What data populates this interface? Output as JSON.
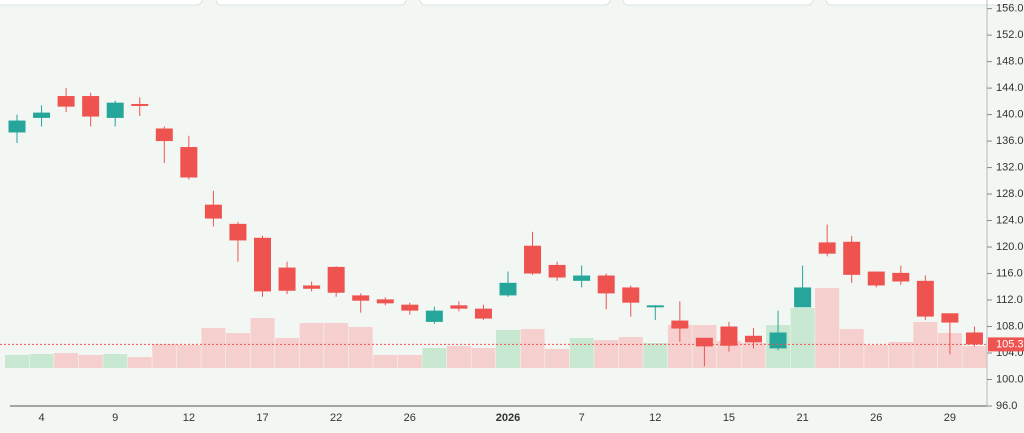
{
  "chart_data": {
    "type": "candlestick",
    "categories": [
      null,
      "4",
      null,
      null,
      "9",
      null,
      null,
      "12",
      null,
      null,
      "17",
      null,
      null,
      "22",
      null,
      null,
      "26",
      null,
      null,
      null,
      "2026",
      null,
      null,
      "7",
      null,
      null,
      "12",
      null,
      null,
      "15",
      null,
      null,
      "21",
      null,
      null,
      "26",
      null,
      null,
      "29",
      null
    ],
    "open": [
      137.3,
      139.5,
      142.8,
      142.8,
      139.5,
      141.6,
      137.9,
      135.1,
      126.4,
      123.5,
      121.4,
      116.9,
      114.2,
      117.0,
      112.7,
      112.1,
      111.3,
      108.7,
      111.2,
      110.7,
      112.7,
      120.2,
      117.3,
      114.9,
      115.7,
      113.9,
      110.9,
      108.9,
      106.3,
      108.0,
      106.6,
      104.7,
      110.9,
      120.7,
      120.8,
      116.3,
      116.1,
      114.9,
      110.0,
      107.1
    ],
    "high": [
      140.0,
      141.4,
      144.0,
      143.3,
      142.1,
      142.6,
      138.2,
      136.8,
      128.5,
      123.8,
      121.7,
      117.8,
      114.8,
      117.1,
      113.0,
      112.4,
      111.6,
      111.0,
      111.8,
      111.3,
      116.3,
      122.3,
      117.8,
      117.2,
      116.0,
      114.2,
      111.2,
      111.8,
      106.3,
      108.7,
      107.8,
      110.4,
      117.2,
      123.4,
      121.7,
      116.3,
      117.2,
      115.7,
      110.0,
      108.0
    ],
    "low": [
      135.7,
      138.2,
      140.4,
      138.2,
      138.2,
      139.8,
      132.7,
      130.2,
      123.1,
      117.8,
      112.5,
      112.9,
      113.3,
      112.5,
      110.1,
      111.2,
      109.8,
      108.4,
      110.3,
      109.0,
      112.5,
      115.8,
      114.9,
      113.9,
      110.6,
      109.5,
      109.0,
      105.7,
      102.0,
      104.2,
      104.7,
      104.4,
      110.9,
      118.6,
      114.6,
      113.9,
      114.3,
      109.0,
      103.8,
      105.0
    ],
    "close": [
      139.1,
      140.3,
      141.2,
      139.7,
      141.8,
      141.3,
      136.0,
      130.5,
      124.3,
      121.0,
      113.3,
      113.4,
      113.7,
      113.1,
      111.9,
      111.5,
      110.4,
      110.4,
      110.7,
      109.2,
      114.6,
      116.0,
      115.4,
      115.7,
      113.0,
      111.6,
      111.2,
      107.7,
      105.0,
      105.1,
      105.6,
      107.1,
      113.9,
      119.0,
      115.8,
      114.2,
      114.8,
      109.5,
      108.6,
      105.3
    ],
    "volume": [
      13,
      14,
      15,
      13,
      14,
      11,
      24,
      23,
      40,
      35,
      50,
      30,
      45,
      45,
      41,
      13,
      13,
      20,
      22,
      20,
      38,
      39,
      19,
      30,
      28,
      31,
      25,
      43,
      43,
      27,
      25,
      43,
      60,
      80,
      39,
      23,
      26,
      46,
      35,
      22
    ],
    "up_color": "#26a69a",
    "down_color": "#ef5350",
    "up_volume_color": "#c8e8d2",
    "down_volume_color": "#f6d0cf",
    "ylim": [
      96,
      157.3
    ],
    "yticks": [
      {
        "value": 96,
        "label": "96.0"
      },
      {
        "value": 100,
        "label": "100.0"
      },
      {
        "value": 104,
        "label": "104.0"
      },
      {
        "value": 108,
        "label": "108.0"
      },
      {
        "value": 112,
        "label": "112.0"
      },
      {
        "value": 116,
        "label": "116.0"
      },
      {
        "value": 120,
        "label": "120.0"
      },
      {
        "value": 124,
        "label": "124.0"
      },
      {
        "value": 128,
        "label": "128.0"
      },
      {
        "value": 132,
        "label": "132.0"
      },
      {
        "value": 136,
        "label": "136.0"
      },
      {
        "value": 140,
        "label": "140.0"
      },
      {
        "value": 144,
        "label": "144.0"
      },
      {
        "value": 148,
        "label": "148.0"
      },
      {
        "value": 152,
        "label": "152.0"
      },
      {
        "value": 156,
        "label": "156.0"
      }
    ],
    "last_price": 105.3
  }
}
